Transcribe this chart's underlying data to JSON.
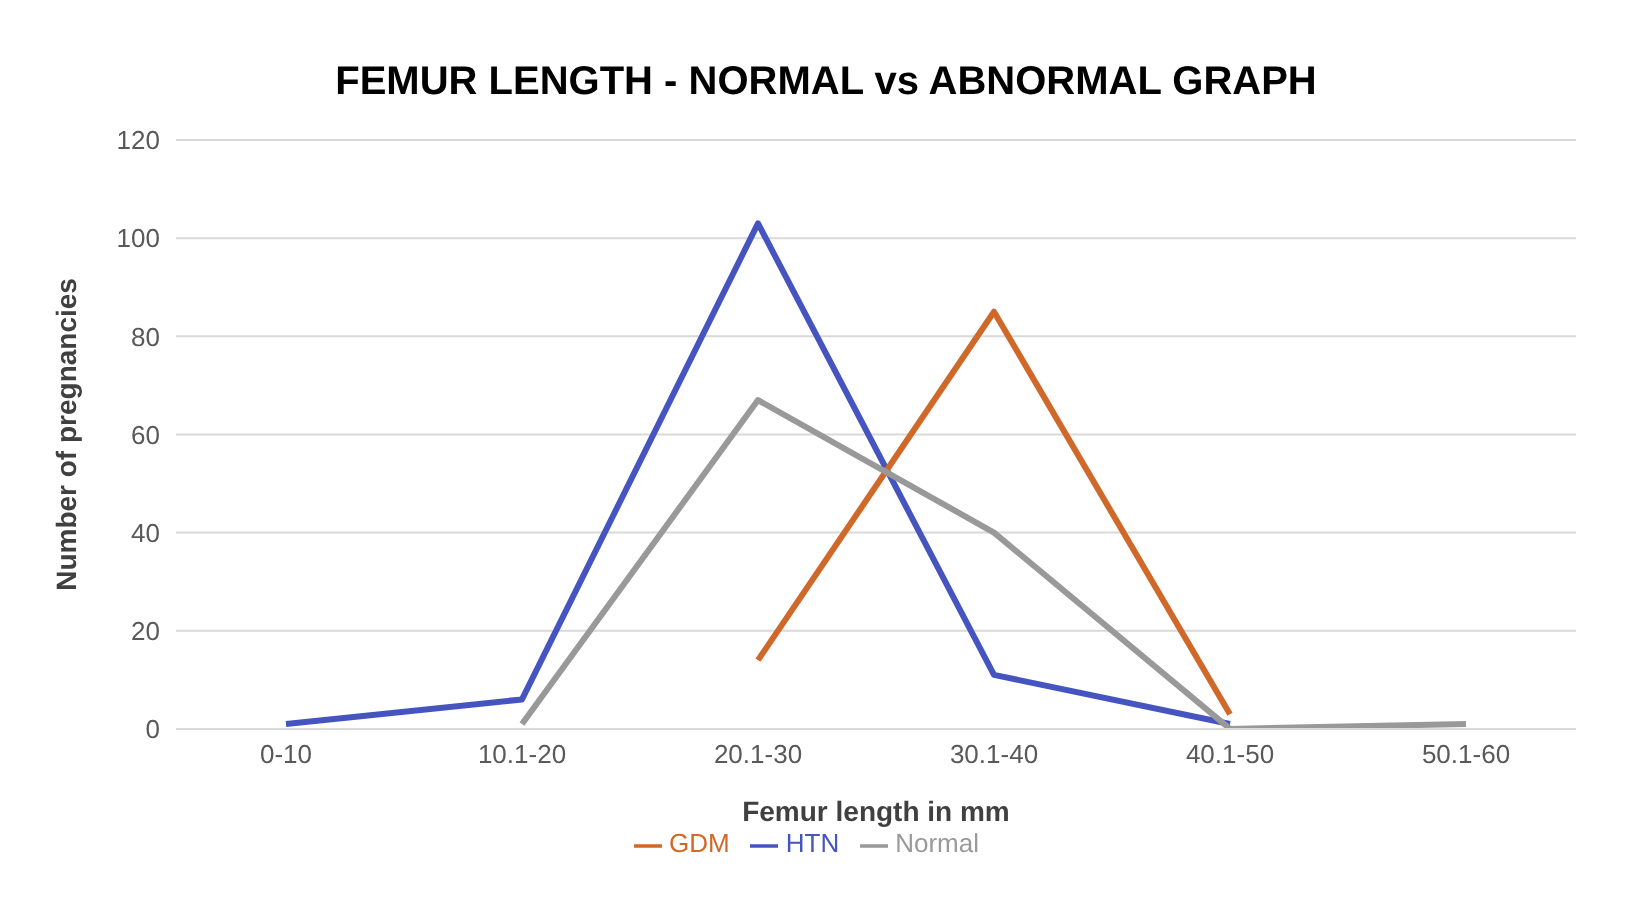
{
  "chart_data": {
    "type": "line",
    "title": "FEMUR LENGTH -  NORMAL vs ABNORMAL GRAPH",
    "xlabel": "Femur length in mm",
    "ylabel": "Number of pregnancies",
    "categories": [
      "0-10",
      "10.1-20",
      "20.1-30",
      "30.1-40",
      "40.1-50",
      "50.1-60"
    ],
    "series": [
      {
        "name": "HTN",
        "color": "#4654c0",
        "values": [
          1,
          6,
          103,
          11,
          1,
          null
        ]
      },
      {
        "name": "GDM",
        "color": "#d0682a",
        "values": [
          null,
          null,
          14,
          85,
          3,
          null
        ]
      },
      {
        "name": "Normal",
        "color": "#999999",
        "values": [
          null,
          1,
          67,
          40,
          0,
          1
        ]
      }
    ],
    "ylim": [
      0,
      120
    ],
    "yticks": [
      0,
      20,
      40,
      60,
      80,
      100,
      120
    ],
    "grid": "y",
    "legend": "bottom",
    "marker": "none",
    "line_style": "solid"
  }
}
